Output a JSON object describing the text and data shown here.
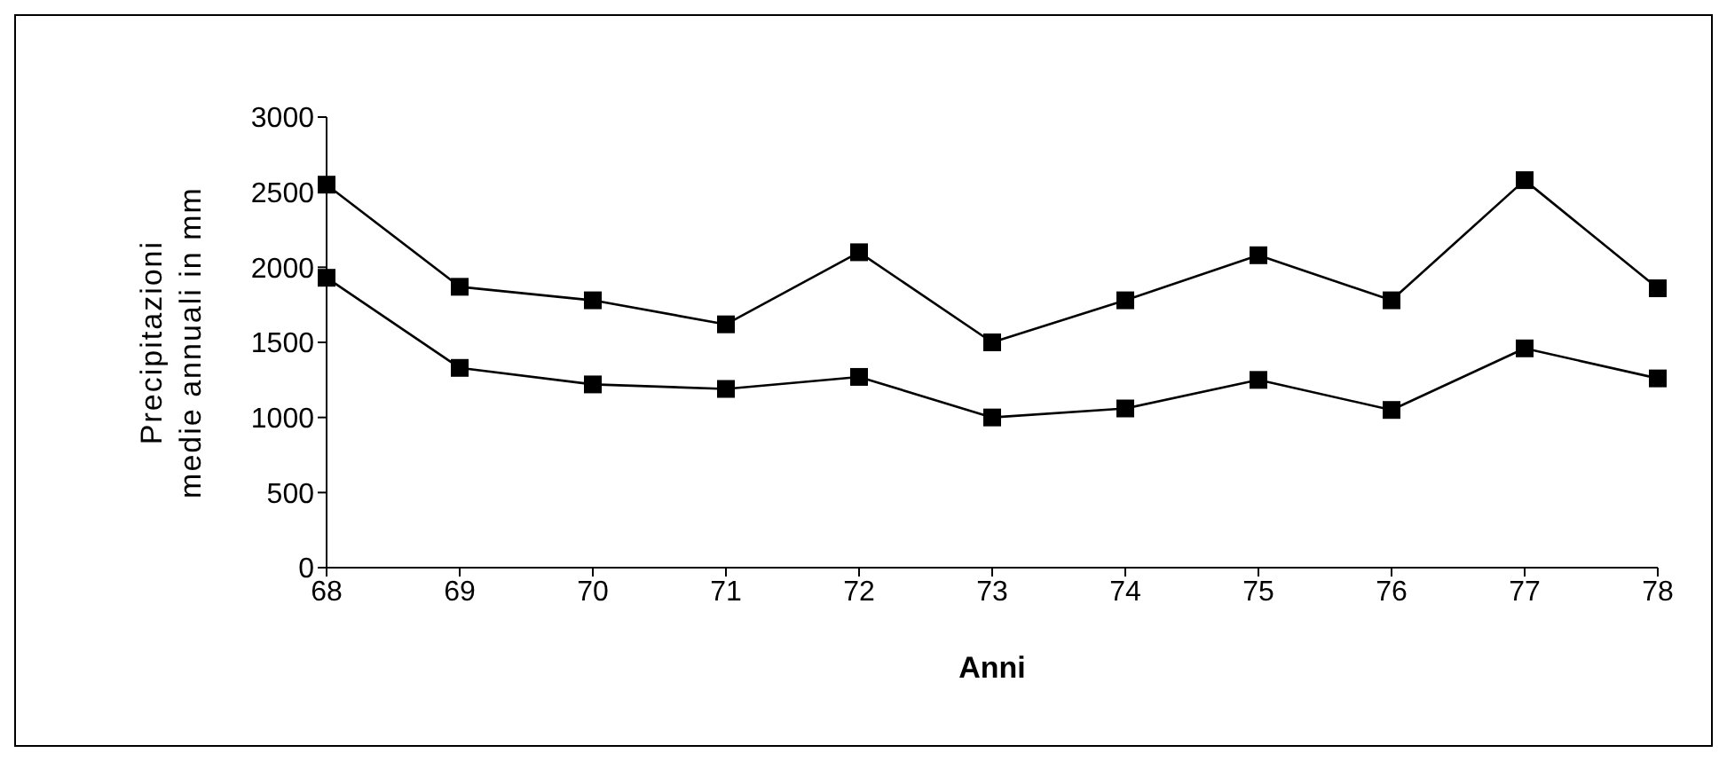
{
  "chart_data": {
    "type": "line",
    "xlabel": "Anni",
    "ylabel": "Precipitazioni medie annuali in mm",
    "x": [
      68,
      69,
      70,
      71,
      72,
      73,
      74,
      75,
      76,
      77,
      78
    ],
    "series": [
      {
        "color": "#000000",
        "values": [
          2550,
          1870,
          1780,
          1620,
          2100,
          1500,
          1780,
          2080,
          1780,
          2580,
          1860
        ]
      },
      {
        "color": "#000000",
        "values": [
          1930,
          1330,
          1220,
          1190,
          1270,
          1000,
          1060,
          1250,
          1050,
          1460,
          1260
        ]
      }
    ],
    "xlim": [
      68,
      78
    ],
    "xticks": [
      68,
      69,
      70,
      71,
      72,
      73,
      74,
      75,
      76,
      77,
      78
    ],
    "ylim": [
      0,
      3000
    ],
    "yticks": [
      0,
      500,
      1000,
      1500,
      2000,
      2500,
      3000
    ],
    "grid": false,
    "legend": false,
    "marker": "square",
    "line_style": "solid"
  }
}
